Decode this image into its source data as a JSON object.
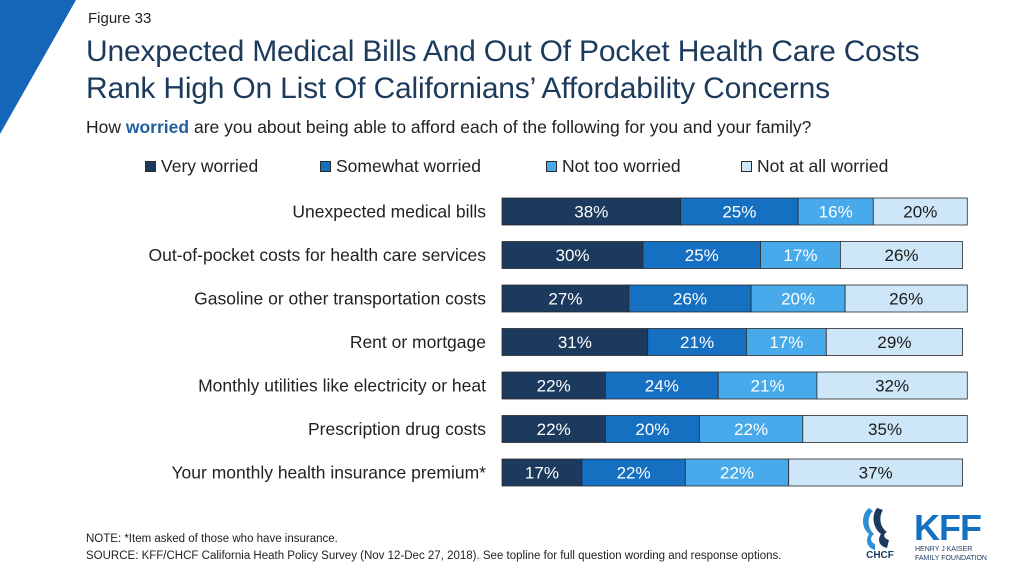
{
  "figure_label": "Figure 33",
  "title_line1": "Unexpected Medical Bills And Out Of Pocket Health Care Costs",
  "title_line2": "Rank High On List Of Californians’ Affordability Concerns",
  "subtitle": {
    "before": "How ",
    "emphasis": "worried",
    "after": " are you about being able to afford each of the following for you and your family?"
  },
  "notes": {
    "note": "NOTE: *Item asked of those who have insurance.",
    "source": "SOURCE: KFF/CHCF California Heath Policy Survey (Nov 12-Dec 27, 2018). See topline for full question wording and response options."
  },
  "logos": {
    "chcf": "CHCF",
    "kff": "KFF",
    "kff_sub1": "HENRY J KAISER",
    "kff_sub2": "FAMILY FOUNDATION"
  },
  "colors": {
    "title": "#1c3a5c",
    "corner": "#1565b8",
    "label_dark": "#ffffff",
    "label_light": "#1a1a1a"
  },
  "chart_data": {
    "type": "bar",
    "orientation": "horizontal",
    "stacked": true,
    "legend_position": "top",
    "grid": false,
    "xlim": [
      0,
      100
    ],
    "categories": [
      "Unexpected medical bills",
      "Out-of-pocket costs for health care services",
      "Gasoline or other transportation costs",
      "Rent or mortgage",
      "Monthly utilities like electricity or heat",
      "Prescription drug costs",
      "Your monthly health insurance premium*"
    ],
    "series": [
      {
        "name": "Very worried",
        "color": "#1b3a5e",
        "values": [
          38,
          30,
          27,
          31,
          22,
          22,
          17
        ]
      },
      {
        "name": "Somewhat worried",
        "color": "#1570c2",
        "values": [
          25,
          25,
          26,
          21,
          24,
          20,
          22
        ]
      },
      {
        "name": "Not too worried",
        "color": "#48aaea",
        "values": [
          16,
          17,
          20,
          17,
          21,
          22,
          22
        ]
      },
      {
        "name": "Not at all worried",
        "color": "#cde6f8",
        "values": [
          20,
          26,
          26,
          29,
          32,
          35,
          37
        ]
      }
    ]
  }
}
